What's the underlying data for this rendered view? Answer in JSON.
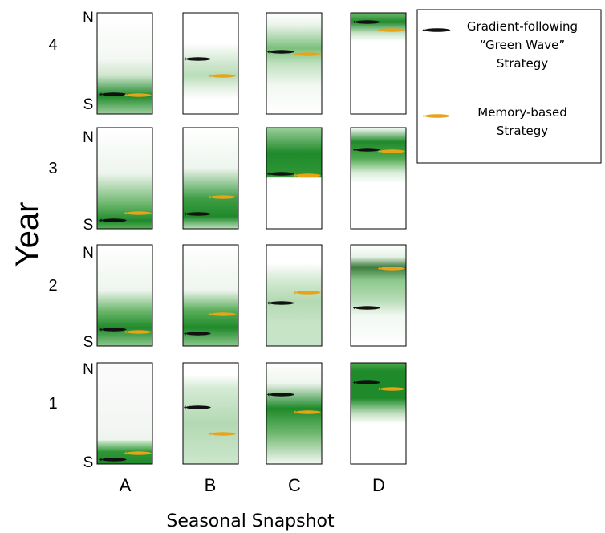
{
  "y_axis_title": "Year",
  "x_axis_title": "Seasonal Snapshot",
  "columns": [
    "A",
    "B",
    "C",
    "D"
  ],
  "years": [
    {
      "label": "4",
      "north": "N",
      "south": "S"
    },
    {
      "label": "3",
      "north": "N",
      "south": "S"
    },
    {
      "label": "2",
      "north": "N",
      "south": "S"
    },
    {
      "label": "1",
      "north": "N",
      "south": "S"
    }
  ],
  "legend": {
    "gradient": {
      "line1": "Gradient-following",
      "line2": "“Green Wave”",
      "line3": "Strategy",
      "color": "#111111"
    },
    "memory": {
      "line1": "Memory-based",
      "line2": "Strategy",
      "color": "#e8a317"
    }
  },
  "colors": {
    "green": "#1f8a2a",
    "gradient_fish": "#111111",
    "memory_fish": "#e8a317"
  }
}
